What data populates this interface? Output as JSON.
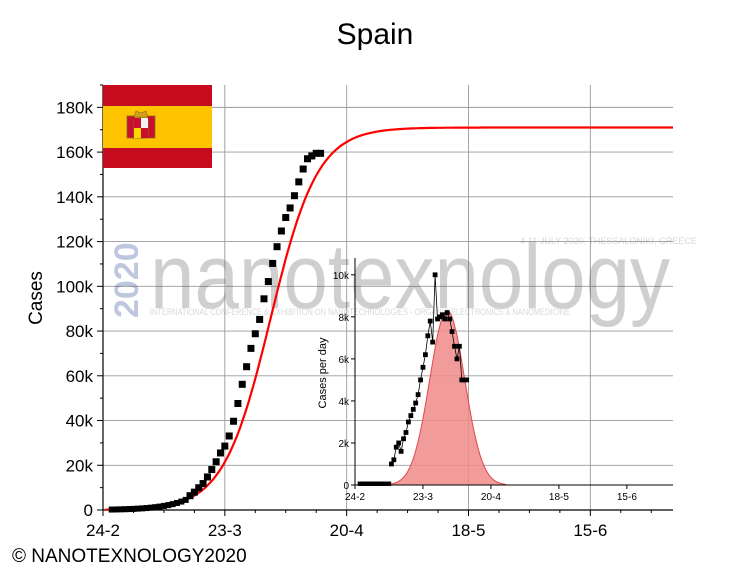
{
  "title": "Spain",
  "credit": "© NANOTEXNOLOGY2020",
  "colors": {
    "fit": "#ff0000",
    "points": "#000000",
    "grid": "#9a9a9a",
    "inset_fill": "#f08a8a"
  },
  "watermark": {
    "brand": "nanotexnology",
    "year": "2020",
    "subtitle": "INTERNATIONAL CONFERENCE & EXHIBITION ON NANOTECHNOLOGIES - ORGANIC ELECTRONICS & NANOMEDICINE",
    "dates": "4-11 JULY 2020, THESSALONIKI, GREECE"
  },
  "flag": {
    "name": "flag-of-spain",
    "colors": [
      "#c60b1e",
      "#ffc400",
      "#c60b1e"
    ]
  },
  "chart_data": [
    {
      "type": "line",
      "title": "Spain",
      "xlabel": "",
      "ylabel": "Cases",
      "x_ticks": [
        "24-2",
        "23-3",
        "20-4",
        "18-5",
        "15-6"
      ],
      "x_tick_days": [
        0,
        28,
        56,
        84,
        112
      ],
      "xlim": [
        0,
        131
      ],
      "y_ticks": [
        "0",
        "20k",
        "40k",
        "60k",
        "80k",
        "100k",
        "120k",
        "140k",
        "160k",
        "180k"
      ],
      "ylim": [
        0,
        190000
      ],
      "grid": true,
      "series": [
        {
          "kind": "points",
          "x": [
            20,
            21,
            22,
            23,
            24,
            25,
            26,
            27,
            28,
            29,
            30,
            31,
            32,
            33,
            34,
            35,
            36,
            37,
            38,
            39,
            40,
            41,
            42,
            43,
            44,
            45,
            46,
            47,
            48,
            49,
            50
          ],
          "y": [
            6391,
            7988,
            9942,
            11826,
            14769,
            18077,
            21571,
            25496,
            28572,
            33089,
            39673,
            47610,
            56188,
            64059,
            72248,
            78797,
            85195,
            94417,
            102136,
            110238,
            117710,
            124736,
            130759,
            135032,
            140510,
            146690,
            152446,
            157022,
            158273,
            159460,
            159460
          ]
        },
        {
          "kind": "fit",
          "model": "logistic",
          "K": 171000,
          "r": 0.185,
          "x0": 38.5
        }
      ]
    },
    {
      "type": "area",
      "title": "",
      "xlabel": "",
      "ylabel": "Cases per day",
      "x_ticks": [
        "24-2",
        "23-3",
        "20-4",
        "18-5",
        "15-6"
      ],
      "x_tick_days": [
        0,
        28,
        56,
        84,
        112
      ],
      "xlim": [
        0,
        131
      ],
      "y_ticks": [
        "0",
        "2k",
        "4k",
        "6k",
        "8k",
        "10k"
      ],
      "ylim": [
        0,
        10800
      ],
      "series": [
        {
          "kind": "points",
          "x": [
            15,
            16,
            17,
            18,
            19,
            20,
            21,
            22,
            23,
            24,
            25,
            26,
            27,
            28,
            29,
            30,
            31,
            32,
            33,
            34,
            35,
            36,
            37,
            38,
            39,
            40,
            41,
            42,
            43,
            44,
            45,
            46
          ],
          "y": [
            1000,
            1200,
            1800,
            2000,
            1600,
            2200,
            2500,
            3000,
            3300,
            3600,
            3900,
            4300,
            5000,
            5600,
            6200,
            7100,
            7800,
            6800,
            10000,
            7900,
            8000,
            8100,
            7900,
            8200,
            7900,
            7300,
            6600,
            6000,
            6600,
            5000,
            5000,
            5000
          ]
        },
        {
          "kind": "fit",
          "model": "gaussian",
          "peak": 8300,
          "center": 38,
          "sigma": 7.2
        }
      ]
    }
  ]
}
